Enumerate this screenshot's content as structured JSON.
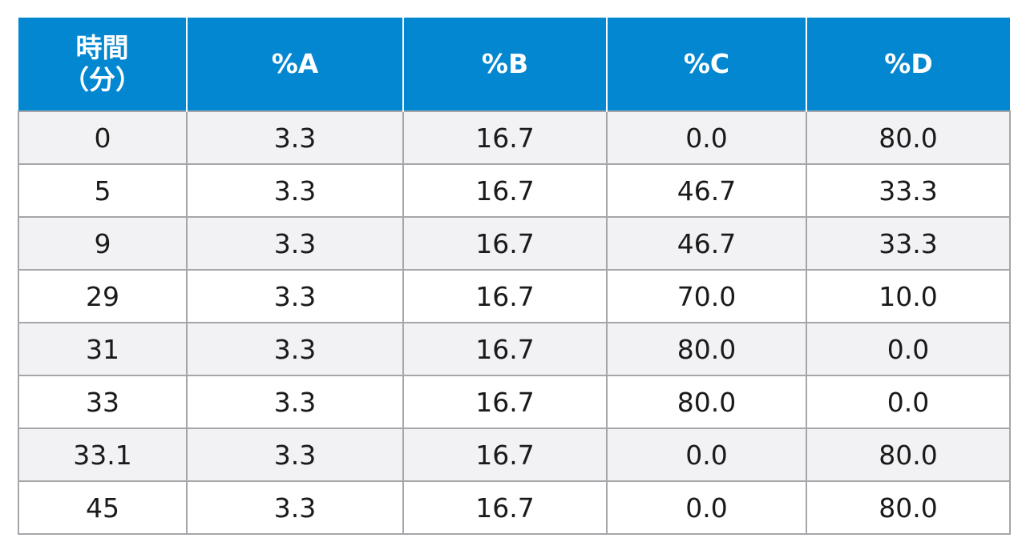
{
  "table": {
    "headers": {
      "time_line1": "時間",
      "time_line2": "（分）",
      "a": "%A",
      "b": "%B",
      "c": "%C",
      "d": "%D"
    },
    "rows": [
      [
        "0",
        "3.3",
        "16.7",
        "0.0",
        "80.0"
      ],
      [
        "5",
        "3.3",
        "16.7",
        "46.7",
        "33.3"
      ],
      [
        "9",
        "3.3",
        "16.7",
        "46.7",
        "33.3"
      ],
      [
        "29",
        "3.3",
        "16.7",
        "70.0",
        "10.0"
      ],
      [
        "31",
        "3.3",
        "16.7",
        "80.0",
        "0.0"
      ],
      [
        "33",
        "3.3",
        "16.7",
        "80.0",
        "0.0"
      ],
      [
        "33.1",
        "3.3",
        "16.7",
        "0.0",
        "80.0"
      ],
      [
        "45",
        "3.3",
        "16.7",
        "0.0",
        "80.0"
      ]
    ]
  },
  "colors": {
    "header_bg": "#0387d1",
    "header_text": "#ffffff",
    "row_alt_bg": "#f2f2f4",
    "grid_line": "#a6a6aa"
  }
}
